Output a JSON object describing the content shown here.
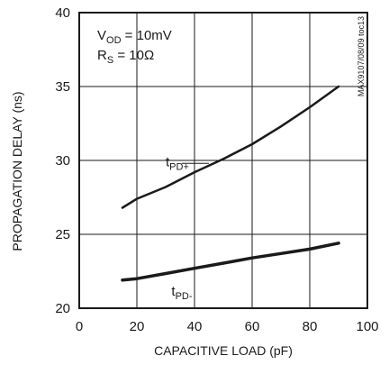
{
  "chart_data": {
    "type": "line",
    "title": "",
    "xlabel": "CAPACITIVE LOAD (pF)",
    "ylabel": "PROPAGATION DELAY (ns)",
    "xlim": [
      0,
      100
    ],
    "ylim": [
      20,
      40
    ],
    "xticks": [
      "0",
      "20",
      "40",
      "60",
      "80",
      "100"
    ],
    "yticks": [
      "20",
      "25",
      "30",
      "35",
      "40"
    ],
    "grid": true,
    "conditions": {
      "vod": {
        "main": "V",
        "sub": "OD",
        "rest": " = 10mV"
      },
      "rs": {
        "main": "R",
        "sub": "S",
        "rest": " = 10Ω"
      }
    },
    "figure_code": "MAX9107/08/09 toc13",
    "series": [
      {
        "name": "tPD+",
        "label": {
          "main": "t",
          "sub": "PD+"
        },
        "x": [
          15,
          20,
          30,
          40,
          50,
          60,
          70,
          80,
          90
        ],
        "y": [
          26.8,
          27.4,
          28.2,
          29.2,
          30.1,
          31.1,
          32.3,
          33.6,
          35.0
        ]
      },
      {
        "name": "tPD-",
        "label": {
          "main": "t",
          "sub": "PD-"
        },
        "x": [
          15,
          20,
          30,
          40,
          50,
          60,
          70,
          80,
          90
        ],
        "y": [
          21.9,
          22.0,
          22.35,
          22.7,
          23.05,
          23.4,
          23.7,
          24.0,
          24.4
        ]
      }
    ],
    "colors": {
      "line": "#1a1a1a",
      "grid": "#1a1a1a",
      "frame": "#1a1a1a",
      "text": "#1a1a1a"
    }
  }
}
